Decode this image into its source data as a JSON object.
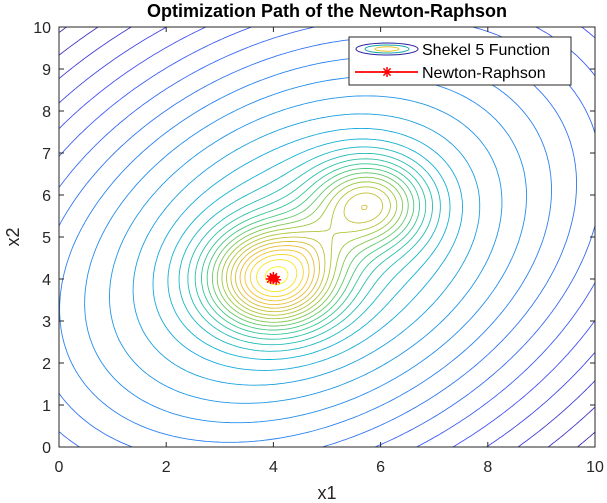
{
  "chart_data": {
    "type": "contour",
    "title": "Optimization Path of the Newton-Raphson",
    "xlabel": "x1",
    "ylabel": "x2",
    "xlim": [
      0,
      10
    ],
    "ylim": [
      0,
      10
    ],
    "xticks": [
      "0",
      "2",
      "4",
      "6",
      "8",
      "10"
    ],
    "yticks": [
      "0",
      "1",
      "2",
      "3",
      "4",
      "5",
      "6",
      "7",
      "8",
      "9",
      "10"
    ],
    "grid": false,
    "legend_position": "top-right",
    "series": [
      {
        "name": "Shekel 5 Function",
        "kind": "contour",
        "colormap": "parula",
        "minima": [
          {
            "x": 4.0,
            "y": 4.0
          },
          {
            "x": 5.8,
            "y": 5.8
          }
        ]
      },
      {
        "name": "Newton-Raphson",
        "kind": "path",
        "color": "#ff0000",
        "marker": "*",
        "points": [
          {
            "x": 4.0,
            "y": 4.05
          },
          {
            "x": 3.95,
            "y": 4.0
          },
          {
            "x": 4.05,
            "y": 3.98
          },
          {
            "x": 4.0,
            "y": 4.0
          }
        ]
      }
    ]
  }
}
